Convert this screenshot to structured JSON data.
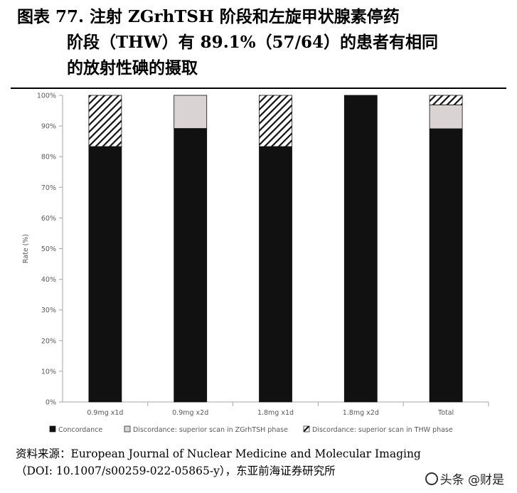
{
  "caption": {
    "line1": "图表 77. 注射 ZGrhTSH 阶段和左旋甲状腺素停药",
    "line2": "阶段（THW）有 89.1%（57/64）的患者有相同",
    "line3": "的放射性碘的摄取"
  },
  "source": {
    "line1": "资料来源：European Journal of Nuclear Medicine and Molecular Imaging",
    "line2": "（DOI: 10.1007/s00259-022-05865-y），东亚前海证券研究所"
  },
  "watermark": "头条 @财是",
  "chart_data": {
    "type": "bar",
    "stacked": true,
    "categories": [
      "0.9mg x1d",
      "0.9mg x2d",
      "1.8mg x1d",
      "1.8mg x2d",
      "Total"
    ],
    "series": [
      {
        "name": "Concordance",
        "values": [
          83.3,
          89.2,
          83.3,
          100,
          89.1
        ],
        "color": "#111111",
        "pattern": "solid"
      },
      {
        "name": "Discordance: superior scan in ZGrhTSH phase",
        "values": [
          0,
          10.8,
          0,
          0,
          7.8
        ],
        "color": "#d9d3d3",
        "pattern": "solid"
      },
      {
        "name": "Discordance: superior scan in THW phase",
        "values": [
          16.7,
          0,
          16.7,
          0,
          3.1
        ],
        "color": "#111111",
        "pattern": "hatch"
      }
    ],
    "ylabel": "Rate (%)",
    "ylim": [
      0,
      100
    ],
    "yticks": [
      "0%",
      "10%",
      "20%",
      "30%",
      "40%",
      "50%",
      "60%",
      "70%",
      "80%",
      "90%",
      "100%"
    ],
    "grid": false,
    "legend_position": "bottom"
  }
}
